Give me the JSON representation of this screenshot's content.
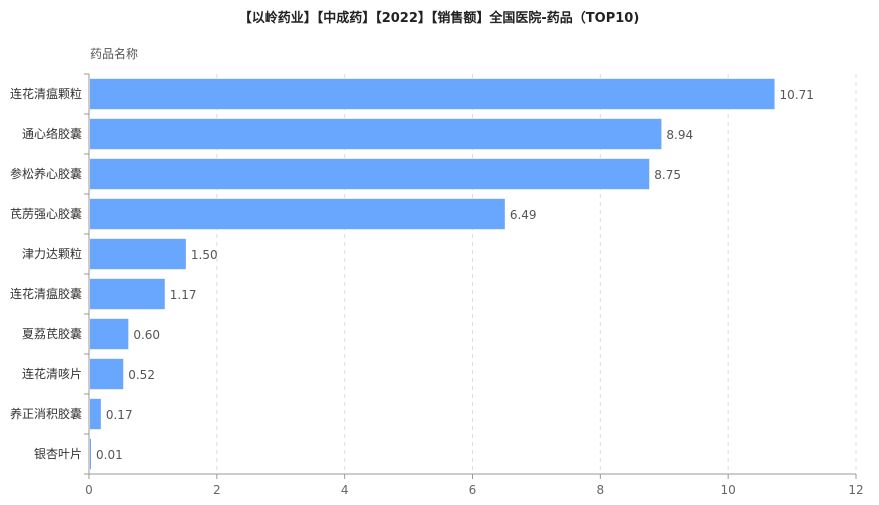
{
  "chart_data": {
    "type": "bar",
    "orientation": "horizontal",
    "title": "【以岭药业】【中成药】【2022】【销售额】全国医院-药品（TOP10)",
    "ylabel": "药品名称",
    "xlabel": "",
    "categories": [
      "连花清瘟颗粒",
      "通心络胶囊",
      "参松养心胶囊",
      "芪苈强心胶囊",
      "津力达颗粒",
      "连花清瘟胶囊",
      "夏荔芪胶囊",
      "连花清咳片",
      "养正消积胶囊",
      "银杏叶片"
    ],
    "values": [
      10.71,
      8.94,
      8.75,
      6.49,
      1.5,
      1.17,
      0.6,
      0.52,
      0.17,
      0.01
    ],
    "value_labels": [
      "10.71",
      "8.94",
      "8.75",
      "6.49",
      "1.50",
      "1.17",
      "0.60",
      "0.52",
      "0.17",
      "0.01"
    ],
    "xlim": [
      0,
      12
    ],
    "xticks": [
      "0",
      "2",
      "4",
      "6",
      "8",
      "10",
      "12"
    ],
    "grid": "vertical dashed",
    "bar_color": "#69a7ff"
  }
}
